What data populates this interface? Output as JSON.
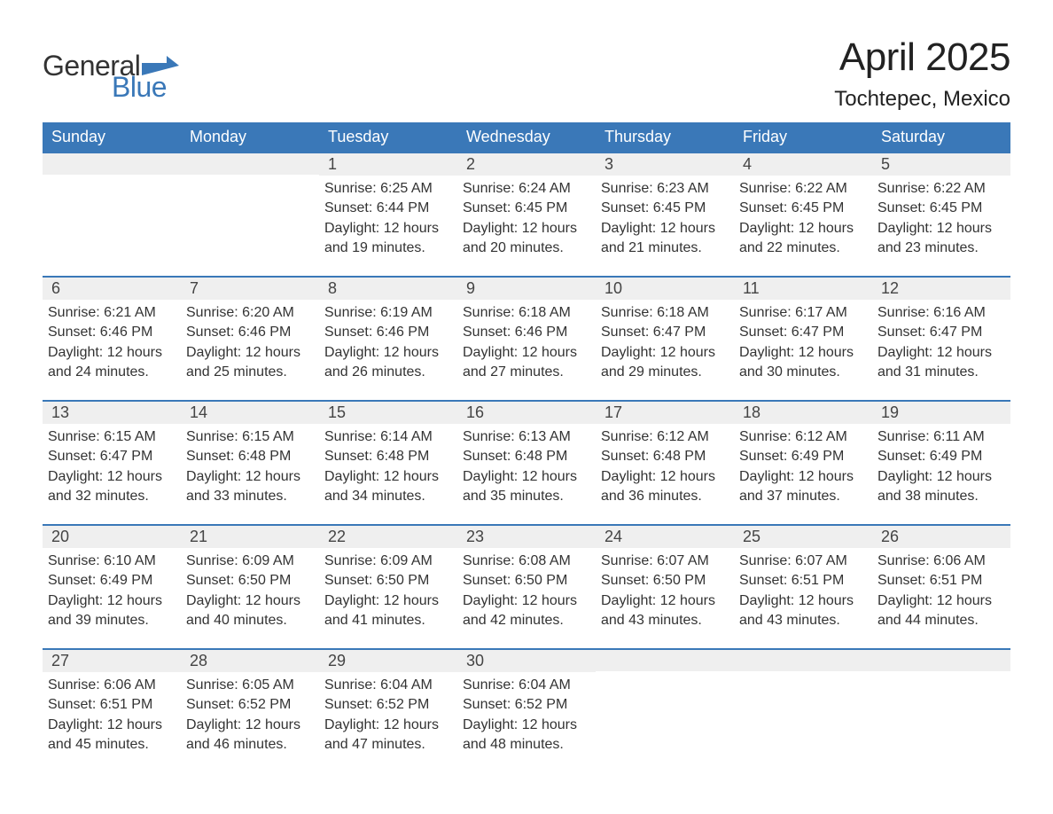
{
  "brand": {
    "word1": "General",
    "word2": "Blue",
    "accent_color": "#3a78b8"
  },
  "title": "April 2025",
  "location": "Tochtepec, Mexico",
  "colors": {
    "header_bg": "#3a78b8",
    "header_text": "#ffffff",
    "daybar_bg": "#efefef",
    "daybar_border": "#3a78b8",
    "body_text": "#333333",
    "page_bg": "#ffffff"
  },
  "weekdays": [
    "Sunday",
    "Monday",
    "Tuesday",
    "Wednesday",
    "Thursday",
    "Friday",
    "Saturday"
  ],
  "weeks": [
    [
      {
        "n": "",
        "sr": "",
        "ss": "",
        "d1": "",
        "d2": ""
      },
      {
        "n": "",
        "sr": "",
        "ss": "",
        "d1": "",
        "d2": ""
      },
      {
        "n": "1",
        "sr": "Sunrise: 6:25 AM",
        "ss": "Sunset: 6:44 PM",
        "d1": "Daylight: 12 hours",
        "d2": "and 19 minutes."
      },
      {
        "n": "2",
        "sr": "Sunrise: 6:24 AM",
        "ss": "Sunset: 6:45 PM",
        "d1": "Daylight: 12 hours",
        "d2": "and 20 minutes."
      },
      {
        "n": "3",
        "sr": "Sunrise: 6:23 AM",
        "ss": "Sunset: 6:45 PM",
        "d1": "Daylight: 12 hours",
        "d2": "and 21 minutes."
      },
      {
        "n": "4",
        "sr": "Sunrise: 6:22 AM",
        "ss": "Sunset: 6:45 PM",
        "d1": "Daylight: 12 hours",
        "d2": "and 22 minutes."
      },
      {
        "n": "5",
        "sr": "Sunrise: 6:22 AM",
        "ss": "Sunset: 6:45 PM",
        "d1": "Daylight: 12 hours",
        "d2": "and 23 minutes."
      }
    ],
    [
      {
        "n": "6",
        "sr": "Sunrise: 6:21 AM",
        "ss": "Sunset: 6:46 PM",
        "d1": "Daylight: 12 hours",
        "d2": "and 24 minutes."
      },
      {
        "n": "7",
        "sr": "Sunrise: 6:20 AM",
        "ss": "Sunset: 6:46 PM",
        "d1": "Daylight: 12 hours",
        "d2": "and 25 minutes."
      },
      {
        "n": "8",
        "sr": "Sunrise: 6:19 AM",
        "ss": "Sunset: 6:46 PM",
        "d1": "Daylight: 12 hours",
        "d2": "and 26 minutes."
      },
      {
        "n": "9",
        "sr": "Sunrise: 6:18 AM",
        "ss": "Sunset: 6:46 PM",
        "d1": "Daylight: 12 hours",
        "d2": "and 27 minutes."
      },
      {
        "n": "10",
        "sr": "Sunrise: 6:18 AM",
        "ss": "Sunset: 6:47 PM",
        "d1": "Daylight: 12 hours",
        "d2": "and 29 minutes."
      },
      {
        "n": "11",
        "sr": "Sunrise: 6:17 AM",
        "ss": "Sunset: 6:47 PM",
        "d1": "Daylight: 12 hours",
        "d2": "and 30 minutes."
      },
      {
        "n": "12",
        "sr": "Sunrise: 6:16 AM",
        "ss": "Sunset: 6:47 PM",
        "d1": "Daylight: 12 hours",
        "d2": "and 31 minutes."
      }
    ],
    [
      {
        "n": "13",
        "sr": "Sunrise: 6:15 AM",
        "ss": "Sunset: 6:47 PM",
        "d1": "Daylight: 12 hours",
        "d2": "and 32 minutes."
      },
      {
        "n": "14",
        "sr": "Sunrise: 6:15 AM",
        "ss": "Sunset: 6:48 PM",
        "d1": "Daylight: 12 hours",
        "d2": "and 33 minutes."
      },
      {
        "n": "15",
        "sr": "Sunrise: 6:14 AM",
        "ss": "Sunset: 6:48 PM",
        "d1": "Daylight: 12 hours",
        "d2": "and 34 minutes."
      },
      {
        "n": "16",
        "sr": "Sunrise: 6:13 AM",
        "ss": "Sunset: 6:48 PM",
        "d1": "Daylight: 12 hours",
        "d2": "and 35 minutes."
      },
      {
        "n": "17",
        "sr": "Sunrise: 6:12 AM",
        "ss": "Sunset: 6:48 PM",
        "d1": "Daylight: 12 hours",
        "d2": "and 36 minutes."
      },
      {
        "n": "18",
        "sr": "Sunrise: 6:12 AM",
        "ss": "Sunset: 6:49 PM",
        "d1": "Daylight: 12 hours",
        "d2": "and 37 minutes."
      },
      {
        "n": "19",
        "sr": "Sunrise: 6:11 AM",
        "ss": "Sunset: 6:49 PM",
        "d1": "Daylight: 12 hours",
        "d2": "and 38 minutes."
      }
    ],
    [
      {
        "n": "20",
        "sr": "Sunrise: 6:10 AM",
        "ss": "Sunset: 6:49 PM",
        "d1": "Daylight: 12 hours",
        "d2": "and 39 minutes."
      },
      {
        "n": "21",
        "sr": "Sunrise: 6:09 AM",
        "ss": "Sunset: 6:50 PM",
        "d1": "Daylight: 12 hours",
        "d2": "and 40 minutes."
      },
      {
        "n": "22",
        "sr": "Sunrise: 6:09 AM",
        "ss": "Sunset: 6:50 PM",
        "d1": "Daylight: 12 hours",
        "d2": "and 41 minutes."
      },
      {
        "n": "23",
        "sr": "Sunrise: 6:08 AM",
        "ss": "Sunset: 6:50 PM",
        "d1": "Daylight: 12 hours",
        "d2": "and 42 minutes."
      },
      {
        "n": "24",
        "sr": "Sunrise: 6:07 AM",
        "ss": "Sunset: 6:50 PM",
        "d1": "Daylight: 12 hours",
        "d2": "and 43 minutes."
      },
      {
        "n": "25",
        "sr": "Sunrise: 6:07 AM",
        "ss": "Sunset: 6:51 PM",
        "d1": "Daylight: 12 hours",
        "d2": "and 43 minutes."
      },
      {
        "n": "26",
        "sr": "Sunrise: 6:06 AM",
        "ss": "Sunset: 6:51 PM",
        "d1": "Daylight: 12 hours",
        "d2": "and 44 minutes."
      }
    ],
    [
      {
        "n": "27",
        "sr": "Sunrise: 6:06 AM",
        "ss": "Sunset: 6:51 PM",
        "d1": "Daylight: 12 hours",
        "d2": "and 45 minutes."
      },
      {
        "n": "28",
        "sr": "Sunrise: 6:05 AM",
        "ss": "Sunset: 6:52 PM",
        "d1": "Daylight: 12 hours",
        "d2": "and 46 minutes."
      },
      {
        "n": "29",
        "sr": "Sunrise: 6:04 AM",
        "ss": "Sunset: 6:52 PM",
        "d1": "Daylight: 12 hours",
        "d2": "and 47 minutes."
      },
      {
        "n": "30",
        "sr": "Sunrise: 6:04 AM",
        "ss": "Sunset: 6:52 PM",
        "d1": "Daylight: 12 hours",
        "d2": "and 48 minutes."
      },
      {
        "n": "",
        "sr": "",
        "ss": "",
        "d1": "",
        "d2": ""
      },
      {
        "n": "",
        "sr": "",
        "ss": "",
        "d1": "",
        "d2": ""
      },
      {
        "n": "",
        "sr": "",
        "ss": "",
        "d1": "",
        "d2": ""
      }
    ]
  ]
}
